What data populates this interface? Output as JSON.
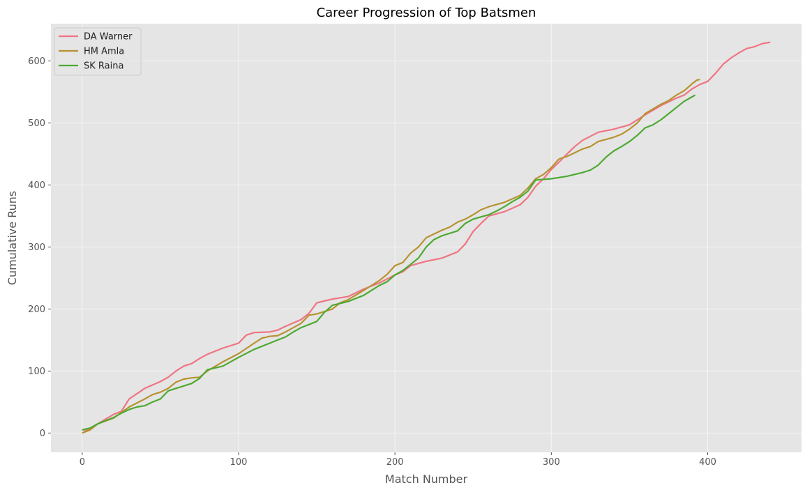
{
  "chart_data": {
    "type": "line",
    "title": "Career Progression of Top Batsmen",
    "xlabel": "Match Number",
    "ylabel": "Cumulative Runs",
    "xlim": [
      -20,
      460
    ],
    "ylim": [
      -31,
      660
    ],
    "xticks": [
      0,
      100,
      200,
      300,
      400
    ],
    "yticks": [
      0,
      100,
      200,
      300,
      400,
      500,
      600
    ],
    "grid": true,
    "legend_position": "top-left",
    "series": [
      {
        "name": "DA Warner",
        "color": "#f07482",
        "points": [
          [
            1,
            2
          ],
          [
            10,
            15
          ],
          [
            20,
            30
          ],
          [
            25,
            35
          ],
          [
            30,
            55
          ],
          [
            40,
            72
          ],
          [
            50,
            83
          ],
          [
            55,
            90
          ],
          [
            60,
            100
          ],
          [
            65,
            108
          ],
          [
            70,
            112
          ],
          [
            75,
            120
          ],
          [
            80,
            127
          ],
          [
            90,
            137
          ],
          [
            100,
            145
          ],
          [
            105,
            158
          ],
          [
            110,
            162
          ],
          [
            120,
            163
          ],
          [
            125,
            166
          ],
          [
            130,
            172
          ],
          [
            140,
            183
          ],
          [
            145,
            193
          ],
          [
            150,
            210
          ],
          [
            160,
            216
          ],
          [
            170,
            220
          ],
          [
            180,
            232
          ],
          [
            190,
            242
          ],
          [
            200,
            255
          ],
          [
            205,
            260
          ],
          [
            210,
            270
          ],
          [
            220,
            277
          ],
          [
            230,
            282
          ],
          [
            240,
            292
          ],
          [
            245,
            305
          ],
          [
            250,
            325
          ],
          [
            255,
            338
          ],
          [
            260,
            350
          ],
          [
            270,
            357
          ],
          [
            280,
            368
          ],
          [
            285,
            380
          ],
          [
            290,
            398
          ],
          [
            295,
            410
          ],
          [
            300,
            425
          ],
          [
            305,
            437
          ],
          [
            310,
            450
          ],
          [
            315,
            462
          ],
          [
            320,
            472
          ],
          [
            330,
            485
          ],
          [
            340,
            490
          ],
          [
            350,
            497
          ],
          [
            360,
            513
          ],
          [
            370,
            528
          ],
          [
            380,
            540
          ],
          [
            385,
            545
          ],
          [
            390,
            555
          ],
          [
            395,
            562
          ],
          [
            400,
            567
          ],
          [
            405,
            580
          ],
          [
            410,
            595
          ],
          [
            415,
            605
          ],
          [
            420,
            613
          ],
          [
            425,
            620
          ],
          [
            430,
            623
          ],
          [
            435,
            628
          ],
          [
            440,
            630
          ]
        ]
      },
      {
        "name": "HM Amla",
        "color": "#b79231",
        "points": [
          [
            0,
            0
          ],
          [
            5,
            5
          ],
          [
            10,
            15
          ],
          [
            20,
            24
          ],
          [
            25,
            33
          ],
          [
            30,
            42
          ],
          [
            40,
            55
          ],
          [
            45,
            62
          ],
          [
            50,
            66
          ],
          [
            55,
            72
          ],
          [
            60,
            82
          ],
          [
            65,
            87
          ],
          [
            70,
            89
          ],
          [
            75,
            90
          ],
          [
            80,
            100
          ],
          [
            90,
            115
          ],
          [
            100,
            128
          ],
          [
            110,
            145
          ],
          [
            115,
            153
          ],
          [
            120,
            156
          ],
          [
            125,
            157
          ],
          [
            130,
            163
          ],
          [
            140,
            177
          ],
          [
            145,
            190
          ],
          [
            150,
            192
          ],
          [
            160,
            200
          ],
          [
            165,
            210
          ],
          [
            170,
            215
          ],
          [
            180,
            230
          ],
          [
            190,
            246
          ],
          [
            195,
            256
          ],
          [
            200,
            270
          ],
          [
            205,
            275
          ],
          [
            210,
            290
          ],
          [
            215,
            300
          ],
          [
            220,
            315
          ],
          [
            230,
            327
          ],
          [
            235,
            332
          ],
          [
            240,
            340
          ],
          [
            245,
            345
          ],
          [
            250,
            352
          ],
          [
            255,
            360
          ],
          [
            260,
            365
          ],
          [
            270,
            372
          ],
          [
            280,
            383
          ],
          [
            285,
            395
          ],
          [
            290,
            410
          ],
          [
            295,
            417
          ],
          [
            300,
            428
          ],
          [
            305,
            442
          ],
          [
            310,
            446
          ],
          [
            320,
            458
          ],
          [
            325,
            462
          ],
          [
            330,
            470
          ],
          [
            340,
            477
          ],
          [
            345,
            482
          ],
          [
            350,
            490
          ],
          [
            355,
            500
          ],
          [
            360,
            515
          ],
          [
            370,
            530
          ],
          [
            375,
            536
          ],
          [
            380,
            545
          ],
          [
            385,
            552
          ],
          [
            390,
            563
          ],
          [
            393,
            569
          ],
          [
            395,
            570
          ]
        ]
      },
      {
        "name": "SK Raina",
        "color": "#4daa30",
        "points": [
          [
            0,
            5
          ],
          [
            5,
            8
          ],
          [
            10,
            15
          ],
          [
            15,
            20
          ],
          [
            20,
            25
          ],
          [
            25,
            32
          ],
          [
            30,
            38
          ],
          [
            35,
            42
          ],
          [
            40,
            44
          ],
          [
            45,
            50
          ],
          [
            50,
            55
          ],
          [
            55,
            68
          ],
          [
            60,
            72
          ],
          [
            65,
            76
          ],
          [
            70,
            80
          ],
          [
            75,
            88
          ],
          [
            80,
            102
          ],
          [
            90,
            108
          ],
          [
            100,
            122
          ],
          [
            110,
            135
          ],
          [
            120,
            145
          ],
          [
            125,
            150
          ],
          [
            130,
            155
          ],
          [
            135,
            163
          ],
          [
            140,
            170
          ],
          [
            145,
            175
          ],
          [
            150,
            180
          ],
          [
            155,
            195
          ],
          [
            160,
            206
          ],
          [
            170,
            212
          ],
          [
            180,
            222
          ],
          [
            190,
            238
          ],
          [
            195,
            244
          ],
          [
            200,
            255
          ],
          [
            205,
            262
          ],
          [
            210,
            272
          ],
          [
            215,
            282
          ],
          [
            220,
            300
          ],
          [
            225,
            312
          ],
          [
            230,
            318
          ],
          [
            240,
            326
          ],
          [
            245,
            338
          ],
          [
            250,
            345
          ],
          [
            260,
            352
          ],
          [
            265,
            358
          ],
          [
            270,
            365
          ],
          [
            275,
            373
          ],
          [
            280,
            380
          ],
          [
            285,
            390
          ],
          [
            290,
            408
          ],
          [
            300,
            410
          ],
          [
            310,
            414
          ],
          [
            320,
            420
          ],
          [
            325,
            424
          ],
          [
            330,
            432
          ],
          [
            335,
            445
          ],
          [
            340,
            455
          ],
          [
            345,
            462
          ],
          [
            350,
            470
          ],
          [
            355,
            480
          ],
          [
            360,
            492
          ],
          [
            365,
            497
          ],
          [
            370,
            505
          ],
          [
            375,
            515
          ],
          [
            380,
            525
          ],
          [
            385,
            535
          ],
          [
            390,
            542
          ],
          [
            392,
            545
          ]
        ]
      }
    ]
  }
}
